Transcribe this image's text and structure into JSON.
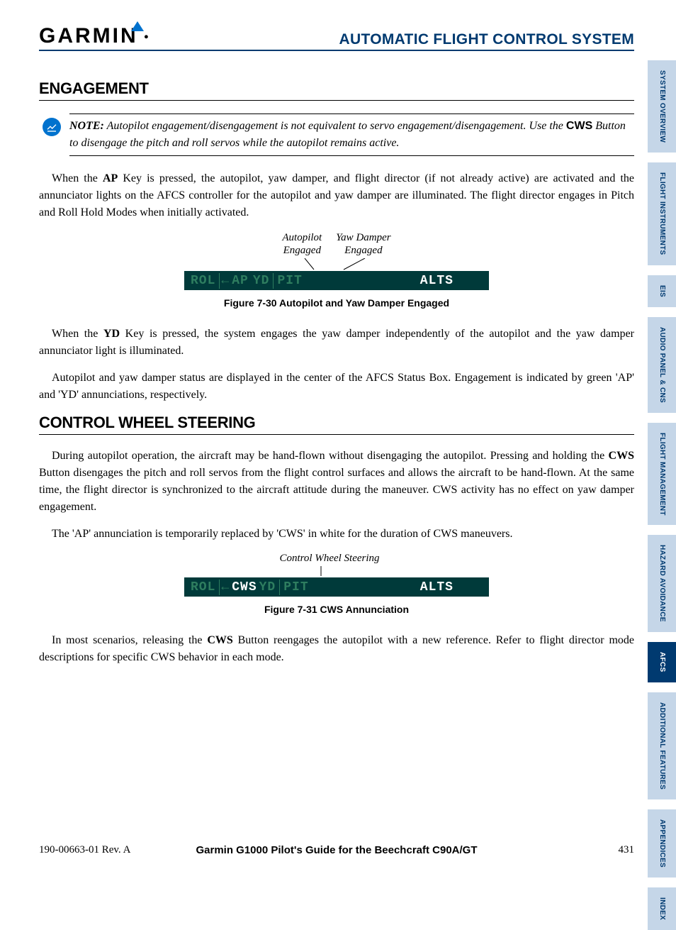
{
  "header": {
    "logo_text": "GARMIN",
    "title": "AUTOMATIC FLIGHT CONTROL SYSTEM"
  },
  "sections": {
    "engagement": {
      "heading": "ENGAGEMENT",
      "note_label": "NOTE:",
      "note_text_1": " Autopilot engagement/disengagement is not equivalent to servo engagement/disengagement.  Use the ",
      "note_cws": "CWS",
      "note_text_2": " Button to disengage the pitch and roll servos while the autopilot remains active.",
      "para1_a": "When the ",
      "para1_key": "AP",
      "para1_b": " Key is pressed, the autopilot, yaw damper, and flight director (if not already active) are activated and the annunciator lights on the AFCS controller for the autopilot and yaw damper are illuminated.  The flight director engages in Pitch and Roll Hold Modes when initially activated.",
      "fig1": {
        "callout_left_1": "Autopilot",
        "callout_left_2": "Engaged",
        "callout_right_1": "Yaw Damper",
        "callout_right_2": "Engaged",
        "bar_rol": "ROL",
        "bar_ap": "AP",
        "bar_yd": "YD",
        "bar_pit": "PIT",
        "bar_alts": "ALTS",
        "caption": "Figure 7-30  Autopilot and Yaw Damper Engaged"
      },
      "para2_a": "When the ",
      "para2_key": "YD",
      "para2_b": " Key is pressed, the system engages the yaw damper independently of the autopilot and the yaw damper annunciator light is illuminated.",
      "para3": "Autopilot and yaw damper status are displayed in the center of the AFCS Status Box.  Engagement is indicated by green 'AP' and 'YD' annunciations, respectively."
    },
    "cws": {
      "heading": "CONTROL WHEEL STEERING",
      "para1_a": "During autopilot operation, the aircraft may be hand-flown without disengaging the autopilot.  Pressing and holding the ",
      "para1_key": "CWS",
      "para1_b": " Button disengages the pitch and roll servos from the flight control surfaces and allows the aircraft to be hand-flown.  At the same time, the flight director is synchronized to the aircraft attitude during the maneuver.  CWS activity has no effect on yaw damper engagement.",
      "para2": "The 'AP' annunciation is temporarily replaced by 'CWS' in white for the duration of CWS maneuvers.",
      "fig2": {
        "callout": "Control Wheel Steering",
        "bar_rol": "ROL",
        "bar_cws": "CWS",
        "bar_yd": "YD",
        "bar_pit": "PIT",
        "bar_alts": "ALTS",
        "caption": "Figure 7-31  CWS Annunciation"
      },
      "para3_a": "In most scenarios, releasing the ",
      "para3_key": "CWS",
      "para3_b": " Button reengages the autopilot with a new reference.  Refer to flight director mode descriptions for specific CWS behavior in each mode."
    }
  },
  "tabs": [
    {
      "label": "SYSTEM OVERVIEW",
      "active": false
    },
    {
      "label": "FLIGHT INSTRUMENTS",
      "active": false
    },
    {
      "label": "EIS",
      "active": false
    },
    {
      "label": "AUDIO PANEL & CNS",
      "active": false
    },
    {
      "label": "FLIGHT MANAGEMENT",
      "active": false
    },
    {
      "label": "HAZARD AVOIDANCE",
      "active": false
    },
    {
      "label": "AFCS",
      "active": true
    },
    {
      "label": "ADDITIONAL FEATURES",
      "active": false
    },
    {
      "label": "APPENDICES",
      "active": false
    },
    {
      "label": "INDEX",
      "active": false
    }
  ],
  "footer": {
    "doc_ref": "190-00663-01  Rev. A",
    "title": "Garmin G1000 Pilot's Guide for the Beechcraft C90A/GT",
    "page": "431"
  },
  "colors": {
    "brand_blue": "#003a70",
    "tab_bg": "#c5d6e8",
    "status_bg": "#003a3a",
    "status_green": "#2e7d5f"
  }
}
